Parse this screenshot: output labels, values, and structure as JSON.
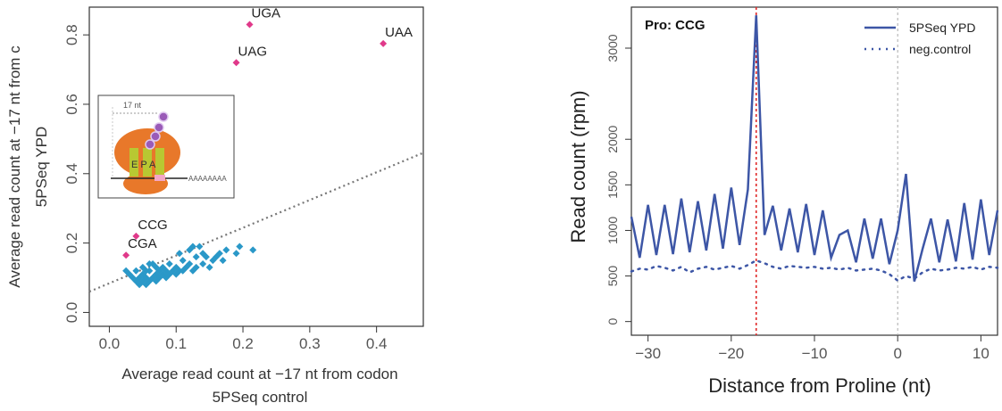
{
  "chart_data": [
    {
      "type": "scatter",
      "xlabel_line1": "Average read count at −17 nt from codon",
      "xlabel_line2": "5PSeq control",
      "ylabel_line1": "Average read count at −17 nt from c",
      "ylabel_line2": "5PSeq YPD",
      "xlim": [
        -0.03,
        0.47
      ],
      "ylim": [
        -0.04,
        0.88
      ],
      "x_ticks": [
        "0.0",
        "0.1",
        "0.2",
        "0.3",
        "0.4"
      ],
      "y_ticks": [
        "0.0",
        "0.2",
        "0.4",
        "0.6",
        "0.8"
      ],
      "diagonal": {
        "style": "dotted",
        "points": [
          [
            -0.03,
            0.06
          ],
          [
            0.47,
            0.46
          ]
        ]
      },
      "colors": {
        "highlight": "#e0398a",
        "codons": "#2a98c8",
        "diagonal": "#777777"
      },
      "highlighted": [
        {
          "label": "UGA",
          "x": 0.21,
          "y": 0.83
        },
        {
          "label": "UAG",
          "x": 0.19,
          "y": 0.72
        },
        {
          "label": "UAA",
          "x": 0.41,
          "y": 0.775
        },
        {
          "label": "CCG",
          "x": 0.04,
          "y": 0.22
        },
        {
          "label": "CGA",
          "x": 0.025,
          "y": 0.165
        }
      ],
      "points": [
        [
          0.03,
          0.11
        ],
        [
          0.035,
          0.1
        ],
        [
          0.04,
          0.09
        ],
        [
          0.04,
          0.12
        ],
        [
          0.045,
          0.08
        ],
        [
          0.045,
          0.1
        ],
        [
          0.05,
          0.09
        ],
        [
          0.05,
          0.11
        ],
        [
          0.05,
          0.13
        ],
        [
          0.055,
          0.08
        ],
        [
          0.055,
          0.1
        ],
        [
          0.06,
          0.09
        ],
        [
          0.06,
          0.12
        ],
        [
          0.065,
          0.1
        ],
        [
          0.065,
          0.14
        ],
        [
          0.07,
          0.09
        ],
        [
          0.07,
          0.11
        ],
        [
          0.075,
          0.12
        ],
        [
          0.075,
          0.1
        ],
        [
          0.08,
          0.11
        ],
        [
          0.08,
          0.13
        ],
        [
          0.085,
          0.1
        ],
        [
          0.085,
          0.12
        ],
        [
          0.09,
          0.11
        ],
        [
          0.09,
          0.14
        ],
        [
          0.095,
          0.12
        ],
        [
          0.1,
          0.11
        ],
        [
          0.1,
          0.13
        ],
        [
          0.105,
          0.12
        ],
        [
          0.11,
          0.15
        ],
        [
          0.11,
          0.12
        ],
        [
          0.115,
          0.13
        ],
        [
          0.12,
          0.18
        ],
        [
          0.12,
          0.14
        ],
        [
          0.125,
          0.12
        ],
        [
          0.13,
          0.16
        ],
        [
          0.13,
          0.13
        ],
        [
          0.135,
          0.19
        ],
        [
          0.14,
          0.14
        ],
        [
          0.14,
          0.17
        ],
        [
          0.145,
          0.16
        ],
        [
          0.15,
          0.13
        ],
        [
          0.155,
          0.15
        ],
        [
          0.16,
          0.16
        ],
        [
          0.165,
          0.17
        ],
        [
          0.17,
          0.15
        ],
        [
          0.175,
          0.18
        ],
        [
          0.19,
          0.17
        ],
        [
          0.195,
          0.19
        ],
        [
          0.215,
          0.18
        ],
        [
          0.025,
          0.12
        ],
        [
          0.06,
          0.14
        ],
        [
          0.105,
          0.17
        ],
        [
          0.125,
          0.19
        ],
        [
          0.055,
          0.12
        ],
        [
          0.07,
          0.13
        ]
      ],
      "inset": {
        "label": "17 nt",
        "site_label": "E P A",
        "polyA": "AAAAAAAA"
      }
    },
    {
      "type": "line",
      "title": "Pro: CCG",
      "xlabel": "Distance from Proline (nt)",
      "ylabel": "Read count (rpm)",
      "xlim": [
        -32,
        12
      ],
      "ylim": [
        -150,
        3450
      ],
      "x_ticks": [
        "−30",
        "−20",
        "−10",
        "0",
        "10"
      ],
      "y_ticks": [
        "0",
        "500",
        "1000",
        "1500",
        "2000",
        "3000"
      ],
      "vlines": [
        {
          "x": -17,
          "color": "#e02a2a",
          "style": "dashed"
        },
        {
          "x": 0,
          "color": "#aaaaaa",
          "style": "dashed"
        }
      ],
      "legend_position": "top-right",
      "series": [
        {
          "name": "5PSeq YPD",
          "style": "solid",
          "color": "#3d56a6",
          "x": [
            -32,
            -31,
            -30,
            -29,
            -28,
            -27,
            -26,
            -25,
            -24,
            -23,
            -22,
            -21,
            -20,
            -19,
            -18,
            -17,
            -16,
            -15,
            -14,
            -13,
            -12,
            -11,
            -10,
            -9,
            -8,
            -7,
            -6,
            -5,
            -4,
            -3,
            -2,
            -1,
            0,
            1,
            2,
            3,
            4,
            5,
            6,
            7,
            8,
            9,
            10,
            11,
            12
          ],
          "values": [
            1150,
            700,
            1280,
            730,
            1280,
            740,
            1350,
            760,
            1320,
            780,
            1400,
            800,
            1470,
            840,
            1450,
            3360,
            950,
            1270,
            780,
            1240,
            760,
            1290,
            730,
            1220,
            700,
            950,
            1000,
            650,
            1130,
            690,
            1130,
            630,
            1000,
            1620,
            440,
            800,
            1130,
            650,
            1120,
            660,
            1300,
            680,
            1340,
            730,
            1220
          ]
        },
        {
          "name": "neg.control",
          "style": "dotted",
          "color": "#3d56a6",
          "x": [
            -32,
            -31,
            -30,
            -29,
            -28,
            -27,
            -26,
            -25,
            -24,
            -23,
            -22,
            -21,
            -20,
            -19,
            -18,
            -17,
            -16,
            -15,
            -14,
            -13,
            -12,
            -11,
            -10,
            -9,
            -8,
            -7,
            -6,
            -5,
            -4,
            -3,
            -2,
            -1,
            0,
            1,
            2,
            3,
            4,
            5,
            6,
            7,
            8,
            9,
            10,
            11,
            12
          ],
          "values": [
            550,
            580,
            570,
            610,
            590,
            560,
            600,
            540,
            580,
            600,
            570,
            590,
            610,
            580,
            620,
            670,
            640,
            600,
            580,
            610,
            600,
            590,
            600,
            580,
            590,
            570,
            590,
            560,
            570,
            580,
            560,
            520,
            450,
            500,
            470,
            540,
            580,
            560,
            570,
            590,
            580,
            600,
            570,
            600,
            590
          ]
        }
      ]
    }
  ]
}
